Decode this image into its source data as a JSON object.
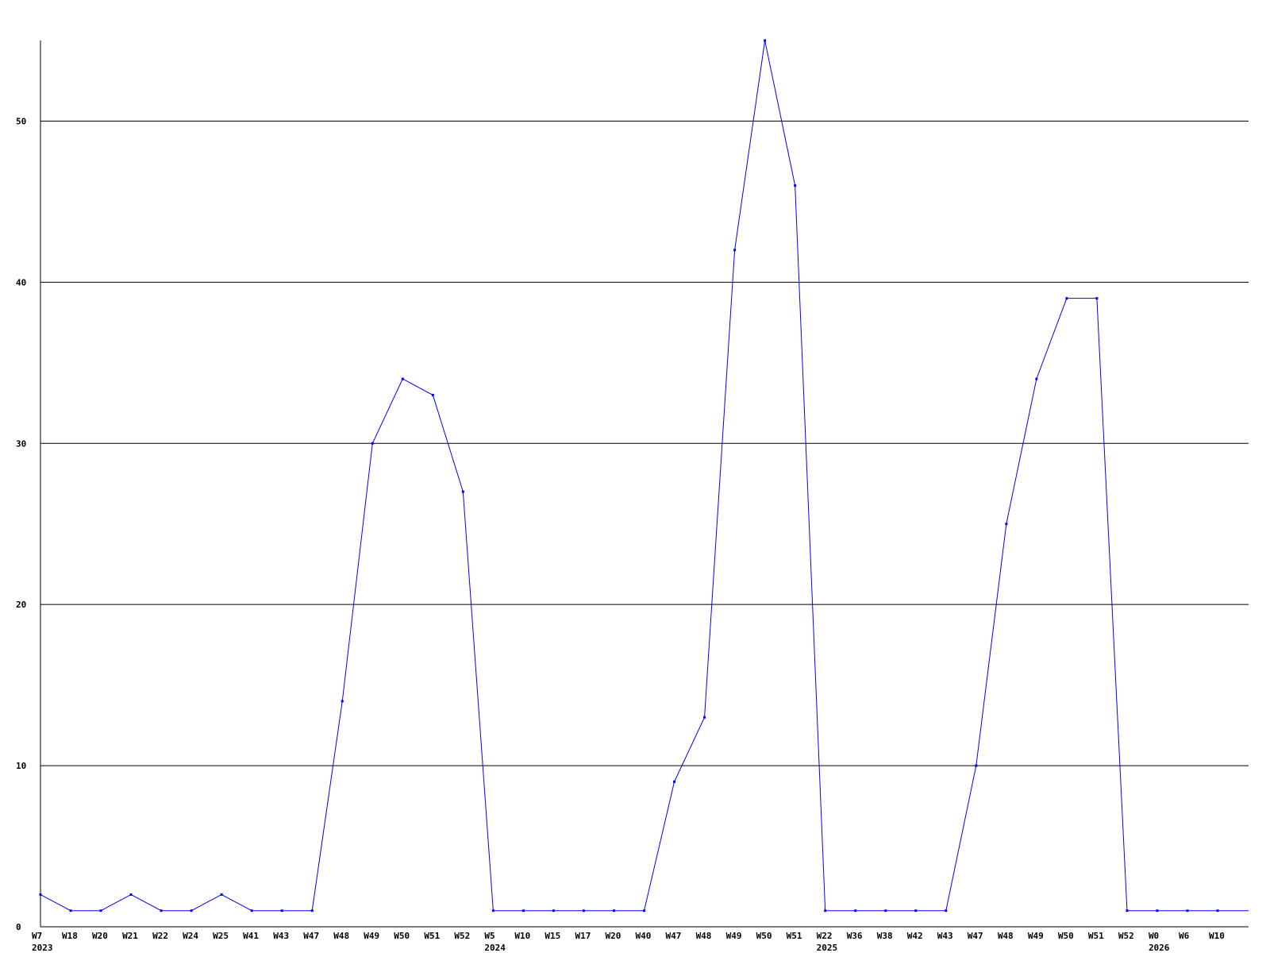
{
  "chart_data": {
    "type": "line",
    "title": "",
    "xlabel": "",
    "ylabel": "",
    "ylim": [
      0,
      55
    ],
    "yticks": [
      0,
      10,
      20,
      30,
      40,
      50
    ],
    "grid": "horizontal",
    "line_color": "#0000ff",
    "x": [
      "W7",
      "W18",
      "W20",
      "W21",
      "W22",
      "W24",
      "W25",
      "W41",
      "W43",
      "W47",
      "W48",
      "W49",
      "W50",
      "W51",
      "W52",
      "W5",
      "W10",
      "W15",
      "W17",
      "W20",
      "W40",
      "W47",
      "W48",
      "W49",
      "W50",
      "W51",
      "W22",
      "W36",
      "W38",
      "W42",
      "W43",
      "W47",
      "W48",
      "W49",
      "W50",
      "W51",
      "W52",
      "W0",
      "W6",
      "W10"
    ],
    "year_labels": [
      {
        "index": 0,
        "label": "2023"
      },
      {
        "index": 15,
        "label": "2024"
      },
      {
        "index": 26,
        "label": "2025"
      },
      {
        "index": 37,
        "label": "2026"
      }
    ],
    "series": [
      {
        "values": [
          2,
          1,
          1,
          2,
          1,
          1,
          2,
          1,
          1,
          1,
          14,
          30,
          34,
          33,
          27,
          1,
          1,
          1,
          1,
          1,
          1,
          9,
          13,
          42,
          55,
          46,
          1,
          1,
          1,
          1,
          1,
          10,
          25,
          34,
          39,
          39,
          1,
          1,
          1,
          1
        ]
      }
    ]
  }
}
